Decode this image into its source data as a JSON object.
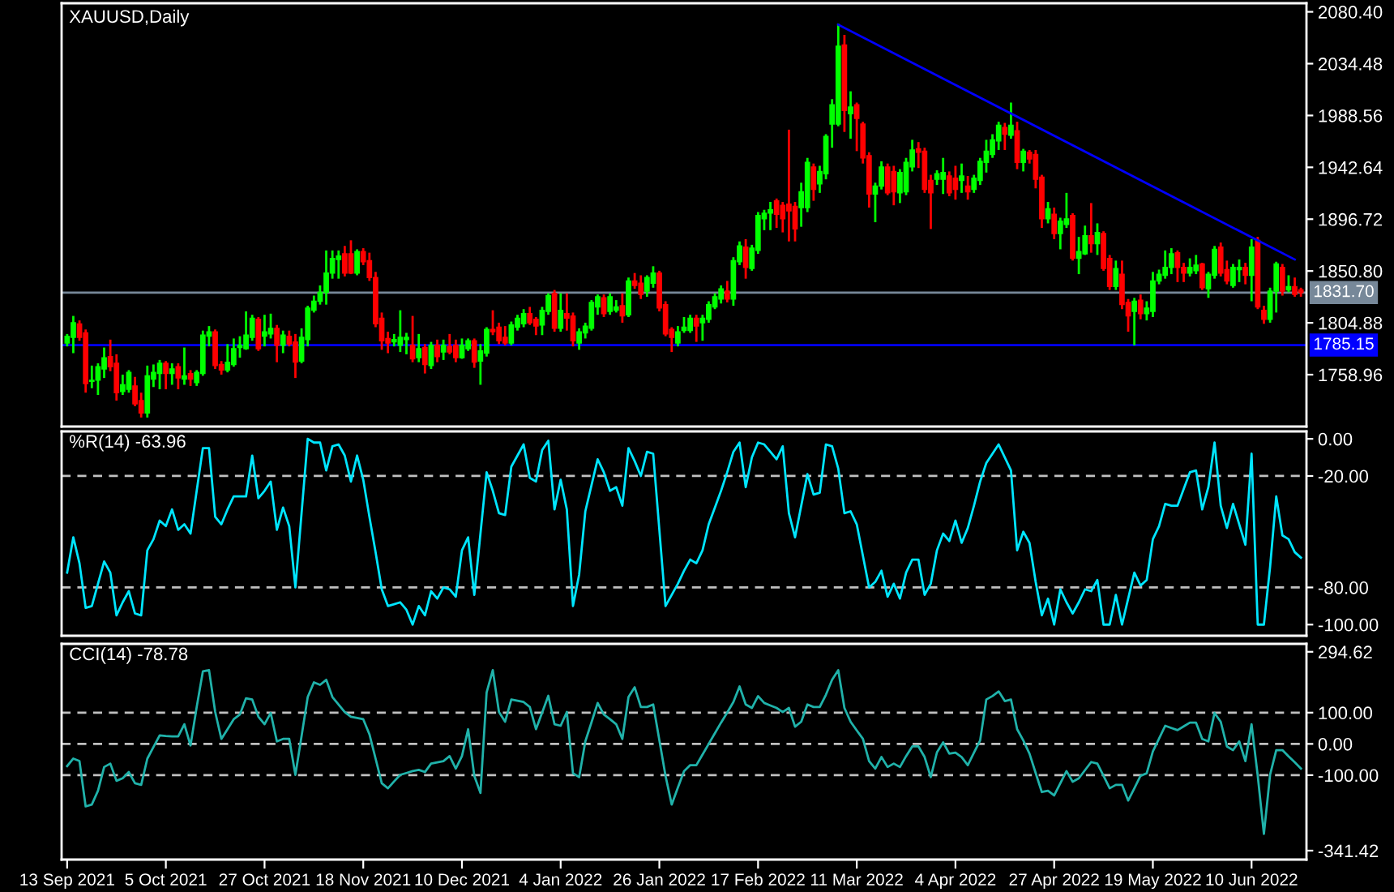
{
  "chart_data": [
    {
      "type": "candlestick",
      "title": "XAUUSD,Daily",
      "tick_labels": "y",
      "categories": [
        null,
        null,
        null,
        null,
        null,
        null,
        null,
        null,
        null,
        null,
        null,
        null,
        null,
        null,
        null,
        null,
        null,
        null,
        null,
        null,
        null,
        null,
        null,
        null,
        null,
        null,
        null,
        null,
        null,
        null,
        null,
        null,
        null,
        null,
        null,
        null,
        null,
        null,
        null,
        null,
        null,
        null,
        null,
        null,
        null,
        null,
        null,
        null,
        null,
        null,
        null,
        null,
        null,
        null,
        null,
        null,
        null,
        null,
        null,
        null,
        null,
        null,
        null,
        null,
        null,
        null,
        null,
        null,
        null,
        null,
        null,
        null,
        null,
        null,
        null,
        null,
        null,
        null,
        null,
        null,
        null,
        null,
        null,
        null,
        null,
        null,
        null,
        null,
        null,
        null,
        null,
        null,
        null,
        null,
        null,
        null,
        null,
        null,
        null,
        null,
        null,
        null,
        null,
        null,
        null,
        null,
        null,
        null,
        null,
        null,
        null,
        null,
        null,
        null,
        null,
        null,
        null,
        null,
        null,
        null,
        null,
        null,
        null,
        null,
        null,
        null,
        null,
        null,
        null,
        null,
        null,
        null,
        null,
        null,
        null,
        null,
        null,
        null,
        null,
        null,
        null,
        null,
        null,
        null,
        null,
        null,
        null,
        null,
        null,
        null,
        null,
        null,
        null,
        null,
        null,
        null,
        null,
        null,
        null,
        null,
        null,
        null,
        null,
        null,
        null,
        null,
        null,
        null,
        null,
        null,
        null,
        null,
        null,
        null,
        null,
        null,
        null,
        null,
        null,
        null,
        null,
        null,
        null,
        null,
        null,
        null,
        null,
        null,
        null,
        null,
        null,
        null,
        null,
        null,
        null,
        null,
        null,
        null,
        null,
        null,
        null
      ],
      "ohlc": [
        [
          1787,
          1794,
          1785,
          1793
        ],
        [
          1792,
          1810,
          1779,
          1805
        ],
        [
          1804,
          1806,
          1790,
          1792
        ],
        [
          1796,
          1798,
          1744,
          1751
        ],
        [
          1753,
          1766,
          1748,
          1754
        ],
        [
          1754,
          1768,
          1742,
          1766
        ],
        [
          1764,
          1782,
          1757,
          1774
        ],
        [
          1775,
          1789,
          1763,
          1766
        ],
        [
          1769,
          1776,
          1737,
          1743
        ],
        [
          1744,
          1758,
          1742,
          1750
        ],
        [
          1746,
          1762,
          1744,
          1761
        ],
        [
          1749,
          1756,
          1732,
          1733
        ],
        [
          1736,
          1742,
          1722,
          1725
        ],
        [
          1725,
          1766,
          1722,
          1758
        ],
        [
          1755,
          1767,
          1749,
          1761
        ],
        [
          1760,
          1771,
          1747,
          1769
        ],
        [
          1769,
          1770,
          1747,
          1760
        ],
        [
          1760,
          1768,
          1751,
          1764
        ],
        [
          1766,
          1768,
          1747,
          1756
        ],
        [
          1755,
          1782,
          1751,
          1758
        ],
        [
          1760,
          1762,
          1750,
          1755
        ],
        [
          1752,
          1762,
          1750,
          1761
        ],
        [
          1760,
          1797,
          1759,
          1794
        ],
        [
          1793,
          1801,
          1785,
          1797
        ],
        [
          1797,
          1798,
          1765,
          1767
        ],
        [
          1768,
          1770,
          1760,
          1763
        ],
        [
          1763,
          1785,
          1762,
          1770
        ],
        [
          1768,
          1790,
          1767,
          1782
        ],
        [
          1783,
          1792,
          1775,
          1785
        ],
        [
          1782,
          1814,
          1782,
          1794
        ],
        [
          1792,
          1811,
          1790,
          1809
        ],
        [
          1808,
          1809,
          1781,
          1782
        ],
        [
          1793,
          1811,
          1785,
          1797
        ],
        [
          1795,
          1812,
          1792,
          1800
        ],
        [
          1800,
          1802,
          1771,
          1785
        ],
        [
          1785,
          1797,
          1779,
          1794
        ],
        [
          1793,
          1797,
          1785,
          1786
        ],
        [
          1788,
          1794,
          1757,
          1770
        ],
        [
          1771,
          1799,
          1770,
          1792
        ],
        [
          1790,
          1819,
          1785,
          1818
        ],
        [
          1816,
          1828,
          1815,
          1824
        ],
        [
          1824,
          1837,
          1822,
          1832
        ],
        [
          1832,
          1868,
          1822,
          1849
        ],
        [
          1849,
          1868,
          1845,
          1862
        ],
        [
          1861,
          1868,
          1845,
          1864
        ],
        [
          1866,
          1872,
          1847,
          1849
        ],
        [
          1866,
          1877,
          1849,
          1849
        ],
        [
          1849,
          1869,
          1848,
          1868
        ],
        [
          1868,
          1870,
          1857,
          1859
        ],
        [
          1860,
          1866,
          1843,
          1845
        ],
        [
          1845,
          1849,
          1802,
          1804
        ],
        [
          1809,
          1813,
          1782,
          1789
        ],
        [
          1791,
          1796,
          1779,
          1787
        ],
        [
          1788,
          1794,
          1785,
          1790
        ],
        [
          1785,
          1815,
          1780,
          1792
        ],
        [
          1790,
          1795,
          1778,
          1792
        ],
        [
          1785,
          1810,
          1771,
          1773
        ],
        [
          1774,
          1794,
          1771,
          1782
        ],
        [
          1783,
          1785,
          1761,
          1768
        ],
        [
          1767,
          1787,
          1765,
          1785
        ],
        [
          1785,
          1789,
          1771,
          1775
        ],
        [
          1779,
          1789,
          1773,
          1785
        ],
        [
          1784,
          1794,
          1778,
          1779
        ],
        [
          1785,
          1789,
          1771,
          1774
        ],
        [
          1774,
          1790,
          1774,
          1785
        ],
        [
          1782,
          1790,
          1781,
          1789
        ],
        [
          1789,
          1790,
          1766,
          1770
        ],
        [
          1771,
          1785,
          1751,
          1780
        ],
        [
          1778,
          1800,
          1776,
          1799
        ],
        [
          1799,
          1815,
          1795,
          1797
        ],
        [
          1801,
          1804,
          1787,
          1789
        ],
        [
          1792,
          1801,
          1786,
          1787
        ],
        [
          1787,
          1805,
          1786,
          1803
        ],
        [
          1801,
          1811,
          1799,
          1809
        ],
        [
          1804,
          1816,
          1802,
          1813
        ],
        [
          1813,
          1818,
          1804,
          1805
        ],
        [
          1808,
          1809,
          1795,
          1802
        ],
        [
          1803,
          1818,
          1795,
          1816
        ],
        [
          1815,
          1830,
          1813,
          1829
        ],
        [
          1831,
          1833,
          1798,
          1800
        ],
        [
          1800,
          1830,
          1798,
          1816
        ],
        [
          1813,
          1830,
          1799,
          1809
        ],
        [
          1811,
          1813,
          1785,
          1789
        ],
        [
          1787,
          1799,
          1782,
          1797
        ],
        [
          1796,
          1804,
          1792,
          1802
        ],
        [
          1800,
          1824,
          1799,
          1823
        ],
        [
          1819,
          1829,
          1813,
          1828
        ],
        [
          1827,
          1829,
          1811,
          1813
        ],
        [
          1815,
          1830,
          1813,
          1828
        ],
        [
          1816,
          1824,
          1815,
          1819
        ],
        [
          1820,
          1830,
          1806,
          1811
        ],
        [
          1812,
          1844,
          1811,
          1842
        ],
        [
          1842,
          1848,
          1836,
          1838
        ],
        [
          1840,
          1846,
          1827,
          1830
        ],
        [
          1833,
          1846,
          1829,
          1845
        ],
        [
          1840,
          1854,
          1837,
          1849
        ],
        [
          1849,
          1850,
          1816,
          1818
        ],
        [
          1821,
          1823,
          1794,
          1795
        ],
        [
          1799,
          1800,
          1780,
          1792
        ],
        [
          1787,
          1801,
          1785,
          1797
        ],
        [
          1798,
          1809,
          1797,
          1801
        ],
        [
          1798,
          1811,
          1797,
          1809
        ],
        [
          1809,
          1811,
          1789,
          1802
        ],
        [
          1805,
          1811,
          1790,
          1809
        ],
        [
          1808,
          1823,
          1806,
          1821
        ],
        [
          1819,
          1830,
          1818,
          1828
        ],
        [
          1826,
          1837,
          1823,
          1835
        ],
        [
          1833,
          1841,
          1824,
          1826
        ],
        [
          1826,
          1862,
          1821,
          1860
        ],
        [
          1859,
          1876,
          1857,
          1873
        ],
        [
          1872,
          1878,
          1845,
          1854
        ],
        [
          1853,
          1873,
          1852,
          1871
        ],
        [
          1869,
          1902,
          1867,
          1900
        ],
        [
          1897,
          1904,
          1888,
          1902
        ],
        [
          1902,
          1911,
          1888,
          1905
        ],
        [
          1913,
          1914,
          1890,
          1901
        ],
        [
          1909,
          1911,
          1886,
          1897
        ],
        [
          1910,
          1975,
          1878,
          1904
        ],
        [
          1908,
          1911,
          1878,
          1888
        ],
        [
          1907,
          1928,
          1891,
          1921
        ],
        [
          1907,
          1950,
          1904,
          1947
        ],
        [
          1943,
          1945,
          1914,
          1923
        ],
        [
          1928,
          1943,
          1921,
          1939
        ],
        [
          1937,
          1971,
          1933,
          1970
        ],
        [
          1981,
          2002,
          1961,
          1998
        ],
        [
          1981,
          2069,
          1980,
          2050
        ],
        [
          2051,
          2059,
          1975,
          1993
        ],
        [
          1990,
          2009,
          1969,
          1996
        ],
        [
          1998,
          1999,
          1958,
          1986
        ],
        [
          1981,
          1982,
          1947,
          1951
        ],
        [
          1953,
          1955,
          1908,
          1919
        ],
        [
          1919,
          1928,
          1895,
          1926
        ],
        [
          1926,
          1947,
          1924,
          1943
        ],
        [
          1943,
          1945,
          1919,
          1920
        ],
        [
          1939,
          1943,
          1910,
          1921
        ],
        [
          1920,
          1940,
          1912,
          1938
        ],
        [
          1921,
          1950,
          1919,
          1947
        ],
        [
          1943,
          1966,
          1940,
          1958
        ],
        [
          1959,
          1964,
          1943,
          1956
        ],
        [
          1957,
          1959,
          1921,
          1923
        ],
        [
          1931,
          1935,
          1889,
          1920
        ],
        [
          1932,
          1939,
          1928,
          1937
        ],
        [
          1932,
          1950,
          1920,
          1938
        ],
        [
          1935,
          1938,
          1918,
          1920
        ],
        [
          1933,
          1943,
          1915,
          1923
        ],
        [
          1931,
          1945,
          1921,
          1935
        ],
        [
          1926,
          1934,
          1915,
          1921
        ],
        [
          1923,
          1935,
          1921,
          1933
        ],
        [
          1931,
          1950,
          1928,
          1948
        ],
        [
          1947,
          1966,
          1939,
          1957
        ],
        [
          1954,
          1971,
          1952,
          1967
        ],
        [
          1966,
          1982,
          1959,
          1980
        ],
        [
          1978,
          1981,
          1959,
          1972
        ],
        [
          1971,
          1999,
          1969,
          1980
        ],
        [
          1975,
          1982,
          1942,
          1947
        ],
        [
          1947,
          1958,
          1940,
          1957
        ],
        [
          1956,
          1957,
          1947,
          1950
        ],
        [
          1954,
          1957,
          1925,
          1932
        ],
        [
          1934,
          1935,
          1890,
          1897
        ],
        [
          1897,
          1911,
          1894,
          1906
        ],
        [
          1901,
          1906,
          1880,
          1884
        ],
        [
          1884,
          1897,
          1871,
          1895
        ],
        [
          1892,
          1919,
          1890,
          1897
        ],
        [
          1900,
          1901,
          1861,
          1862
        ],
        [
          1862,
          1880,
          1849,
          1868
        ],
        [
          1866,
          1890,
          1866,
          1882
        ],
        [
          1882,
          1910,
          1868,
          1875
        ],
        [
          1875,
          1892,
          1866,
          1885
        ],
        [
          1884,
          1885,
          1852,
          1853
        ],
        [
          1862,
          1864,
          1835,
          1837
        ],
        [
          1837,
          1859,
          1835,
          1853
        ],
        [
          1848,
          1859,
          1818,
          1821
        ],
        [
          1823,
          1825,
          1798,
          1811
        ],
        [
          1815,
          1826,
          1786,
          1824
        ],
        [
          1825,
          1829,
          1809,
          1813
        ],
        [
          1813,
          1823,
          1808,
          1818
        ],
        [
          1815,
          1849,
          1811,
          1842
        ],
        [
          1842,
          1851,
          1840,
          1848
        ],
        [
          1847,
          1868,
          1845,
          1854
        ],
        [
          1854,
          1870,
          1849,
          1866
        ],
        [
          1867,
          1868,
          1842,
          1854
        ],
        [
          1854,
          1857,
          1842,
          1849
        ],
        [
          1849,
          1861,
          1847,
          1854
        ],
        [
          1851,
          1864,
          1849,
          1856
        ],
        [
          1857,
          1857,
          1835,
          1836
        ],
        [
          1835,
          1849,
          1828,
          1848
        ],
        [
          1847,
          1872,
          1845,
          1870
        ],
        [
          1872,
          1875,
          1847,
          1849
        ],
        [
          1852,
          1859,
          1840,
          1842
        ],
        [
          1838,
          1856,
          1837,
          1854
        ],
        [
          1852,
          1860,
          1842,
          1854
        ],
        [
          1854,
          1857,
          1840,
          1847
        ],
        [
          1847,
          1878,
          1825,
          1872
        ],
        [
          1878,
          1880,
          1818,
          1819
        ],
        [
          1816,
          1819,
          1805,
          1808
        ],
        [
          1808,
          1835,
          1806,
          1833
        ],
        [
          1833,
          1858,
          1815,
          1857
        ],
        [
          1854,
          1856,
          1830,
          1833
        ],
        [
          1834,
          1846,
          1833,
          1837
        ],
        [
          1837,
          1844,
          1829,
          1830
        ],
        [
          1834,
          1835,
          1829,
          1831.7
        ]
      ],
      "series": [
        {
          "type": "line",
          "color": "#0000ff",
          "values": [
            null,
            null,
            null,
            null,
            null,
            null,
            null,
            null,
            null,
            null,
            null,
            null,
            null,
            null,
            null,
            null,
            null,
            null,
            null,
            null,
            null,
            null,
            null,
            null,
            null,
            null,
            null,
            null,
            null,
            null,
            null,
            null,
            null,
            null,
            null,
            null,
            null,
            null,
            null,
            null,
            null,
            null,
            null,
            null,
            null,
            null,
            null,
            null,
            null,
            null,
            null,
            null,
            null,
            null,
            null,
            null,
            null,
            null,
            null,
            null,
            null,
            null,
            null,
            null,
            null,
            null,
            null,
            null,
            null,
            null,
            null,
            null,
            null,
            null,
            null,
            null,
            null,
            null,
            null,
            null,
            null,
            null,
            null,
            null,
            null,
            null,
            null,
            null,
            null,
            null,
            null,
            null,
            null,
            null,
            null,
            null,
            null,
            null,
            null,
            null,
            null,
            null,
            null,
            null,
            null,
            null,
            null,
            null,
            null,
            null,
            null,
            null,
            null,
            null,
            null,
            null,
            null,
            null,
            null,
            null,
            null,
            null,
            null,
            null,
            null,
            2069,
            null,
            null,
            null,
            null,
            null,
            null,
            null,
            null,
            null,
            null,
            null,
            null,
            null,
            null,
            null,
            null,
            null,
            null,
            null,
            null,
            null,
            null,
            null,
            null,
            null,
            null,
            null,
            null,
            null,
            null,
            null,
            null,
            null,
            null,
            null,
            null,
            null,
            null,
            null,
            null,
            null,
            null,
            null,
            null,
            null,
            null,
            null,
            null,
            null,
            null,
            null,
            null,
            null,
            null,
            null,
            null,
            null,
            null,
            null,
            null,
            null,
            null,
            null,
            null,
            null,
            null,
            null,
            null,
            null,
            null,
            null,
            null,
            null,
            1861,
            null
          ]
        }
      ],
      "ylim": [
        1713,
        2088
      ],
      "yticks": [
        {
          "value": 2080.4,
          "label": "2080.40"
        },
        {
          "value": 2034.48,
          "label": "2034.48"
        },
        {
          "value": 1988.56,
          "label": "1988.56"
        },
        {
          "value": 1942.64,
          "label": "1942.64"
        },
        {
          "value": 1896.72,
          "label": "1896.72"
        },
        {
          "value": 1850.8,
          "label": "1850.80"
        },
        {
          "value": 1804.88,
          "label": "1804.88"
        },
        {
          "value": 1758.96,
          "label": "1758.96"
        }
      ],
      "ref_lines": [
        {
          "axis": "y",
          "value": 1831.7,
          "label": "1831.70",
          "color": "#778899"
        },
        {
          "axis": "y",
          "value": 1785.15,
          "label": "1785.15",
          "color": "#0000ff"
        }
      ]
    },
    {
      "type": "line",
      "title": "%R(14) -63.96",
      "tick_labels": "y",
      "categories": [
        null,
        null,
        null,
        null,
        null,
        null,
        null,
        null,
        null,
        null,
        null,
        null,
        null,
        null,
        null,
        null,
        null,
        null,
        null,
        null,
        null,
        null,
        null,
        null,
        null,
        null,
        null,
        null,
        null,
        null,
        null,
        null,
        null,
        null,
        null,
        null,
        null,
        null,
        null,
        null,
        null,
        null,
        null,
        null,
        null,
        null,
        null,
        null,
        null,
        null,
        null,
        null,
        null,
        null,
        null,
        null,
        null,
        null,
        null,
        null,
        null,
        null,
        null,
        null,
        null,
        null,
        null,
        null,
        null,
        null,
        null,
        null,
        null,
        null,
        null,
        null,
        null,
        null,
        null,
        null,
        null,
        null,
        null,
        null,
        null,
        null,
        null,
        null,
        null,
        null,
        null,
        null,
        null,
        null,
        null,
        null,
        null,
        null,
        null,
        null,
        null,
        null,
        null,
        null,
        null,
        null,
        null,
        null,
        null,
        null,
        null,
        null,
        null,
        null,
        null,
        null,
        null,
        null,
        null,
        null,
        null,
        null,
        null,
        null,
        null,
        null,
        null,
        null,
        null,
        null,
        null,
        null,
        null,
        null,
        null,
        null,
        null,
        null,
        null,
        null,
        null,
        null,
        null,
        null,
        null,
        null,
        null,
        null,
        null,
        null,
        null,
        null,
        null,
        null,
        null,
        null,
        null,
        null,
        null,
        null,
        null,
        null,
        null,
        null,
        null,
        null,
        null,
        null,
        null,
        null,
        null,
        null,
        null,
        null,
        null,
        null,
        null,
        null,
        null,
        null,
        null,
        null,
        null,
        null,
        null,
        null,
        null,
        null,
        null,
        null,
        null,
        null,
        null,
        null,
        null,
        null,
        null,
        null,
        null,
        null,
        null
      ],
      "series": [
        {
          "color": "#00e5ff",
          "values": [
            -72,
            -53,
            -67,
            -91,
            -90,
            -78,
            -66,
            -72,
            -95,
            -88,
            -82,
            -94,
            -95,
            -60,
            -54,
            -44,
            -47,
            -38,
            -49,
            -46,
            -51,
            -28,
            -5,
            -5,
            -42,
            -46,
            -38,
            -31,
            -31,
            -31,
            -9,
            -32,
            -28,
            -23,
            -49,
            -37,
            -47,
            -80,
            -40,
            0,
            -2,
            -2,
            -17,
            -4,
            -3,
            -9,
            -23,
            -9,
            -22,
            -42,
            -61,
            -81,
            -90,
            -89,
            -88,
            -92,
            -100,
            -90,
            -95,
            -82,
            -86,
            -80,
            -81,
            -85,
            -60,
            -53,
            -84,
            -51,
            -18,
            -28,
            -40,
            -41,
            -15,
            -9,
            -3,
            -21,
            -23,
            -6,
            -1,
            -38,
            -22,
            -38,
            -90,
            -73,
            -39,
            -25,
            -11,
            -18,
            -28,
            -26,
            -36,
            -5,
            -12,
            -20,
            -7,
            -8,
            -49,
            -90,
            -84,
            -78,
            -71,
            -65,
            -67,
            -60,
            -46,
            -37,
            -28,
            -18,
            -7,
            -2,
            -26,
            -10,
            -2,
            -3,
            -7,
            -11,
            -4,
            -40,
            -53,
            -36,
            -19,
            -30,
            -29,
            -3,
            -4,
            -16,
            -40,
            -39,
            -46,
            -63,
            -80,
            -77,
            -71,
            -85,
            -78,
            -86,
            -72,
            -65,
            -65,
            -84,
            -78,
            -60,
            -51,
            -55,
            -44,
            -56,
            -48,
            -36,
            -23,
            -13,
            -8,
            -3,
            -10,
            -17,
            -60,
            -50,
            -56,
            -77,
            -95,
            -86,
            -100,
            -81,
            -88,
            -94,
            -88,
            -81,
            -82,
            -76,
            -100,
            -100,
            -84,
            -100,
            -86,
            -72,
            -79,
            -76,
            -54,
            -47,
            -35,
            -36,
            -36,
            -27,
            -18,
            -17,
            -38,
            -26,
            -2,
            -36,
            -48,
            -35,
            -46,
            -57,
            -8,
            -100,
            -100,
            -69,
            -31,
            -52,
            -54,
            -61,
            -63.96
          ]
        }
      ],
      "ylim": [
        -106,
        4
      ],
      "yticks": [
        {
          "value": 0,
          "label": "0.00"
        },
        {
          "value": -20,
          "label": "-20.00"
        },
        {
          "value": -80,
          "label": "-80.00"
        },
        {
          "value": -100,
          "label": "-100.00"
        }
      ],
      "ref_lines": [
        {
          "axis": "y",
          "value": -20,
          "color": "#c0c0c0",
          "line_style": "dashed"
        },
        {
          "axis": "y",
          "value": -80,
          "color": "#c0c0c0",
          "line_style": "dashed"
        }
      ]
    },
    {
      "type": "line",
      "title": "CCI(14) -78.78",
      "categories": [
        "13 Sep 2021",
        null,
        null,
        null,
        null,
        null,
        null,
        null,
        null,
        null,
        null,
        null,
        null,
        null,
        null,
        null,
        "5 Oct 2021",
        null,
        null,
        null,
        null,
        null,
        null,
        null,
        null,
        null,
        null,
        null,
        null,
        null,
        null,
        null,
        "27 Oct 2021",
        null,
        null,
        null,
        null,
        null,
        null,
        null,
        null,
        null,
        null,
        null,
        null,
        null,
        null,
        null,
        "18 Nov 2021",
        null,
        null,
        null,
        null,
        null,
        null,
        null,
        null,
        null,
        null,
        null,
        null,
        null,
        null,
        null,
        "10 Dec 2021",
        null,
        null,
        null,
        null,
        null,
        null,
        null,
        null,
        null,
        null,
        null,
        null,
        null,
        null,
        null,
        "4 Jan 2022",
        null,
        null,
        null,
        null,
        null,
        null,
        null,
        null,
        null,
        null,
        null,
        null,
        null,
        null,
        null,
        "26 Jan 2022",
        null,
        null,
        null,
        null,
        null,
        null,
        null,
        null,
        null,
        null,
        null,
        null,
        null,
        null,
        null,
        "17 Feb 2022",
        null,
        null,
        null,
        null,
        null,
        null,
        null,
        null,
        null,
        null,
        null,
        null,
        null,
        null,
        null,
        "11 Mar 2022",
        null,
        null,
        null,
        null,
        null,
        null,
        null,
        null,
        null,
        null,
        null,
        null,
        null,
        null,
        null,
        "4 Apr 2022",
        null,
        null,
        null,
        null,
        null,
        null,
        null,
        null,
        null,
        null,
        null,
        null,
        null,
        null,
        null,
        "27 Apr 2022",
        null,
        null,
        null,
        null,
        null,
        null,
        null,
        null,
        null,
        null,
        null,
        null,
        null,
        null,
        null,
        "19 May 2022",
        null,
        null,
        null,
        null,
        null,
        null,
        null,
        null,
        null,
        null,
        null,
        null,
        null,
        null,
        null,
        "10 Jun 2022",
        null,
        null,
        null,
        null,
        null,
        null,
        null,
        null
      ],
      "series": [
        {
          "color": "#20b2aa",
          "values": [
            -71,
            -47,
            -55,
            -200,
            -194,
            -150,
            -74,
            -63,
            -118,
            -110,
            -90,
            -126,
            -131,
            -47,
            -10,
            27,
            25,
            24,
            24,
            63,
            -5,
            118,
            232,
            236,
            102,
            16,
            47,
            79,
            94,
            146,
            142,
            87,
            63,
            99,
            8,
            16,
            16,
            -99,
            25,
            150,
            197,
            189,
            205,
            150,
            126,
            102,
            87,
            83,
            79,
            31,
            -47,
            -126,
            -142,
            -120,
            -99,
            -93,
            -87,
            -83,
            -90,
            -63,
            -59,
            -55,
            -39,
            -79,
            -39,
            47,
            -102,
            -157,
            165,
            236,
            102,
            71,
            142,
            138,
            134,
            118,
            47,
            100,
            154,
            63,
            58,
            102,
            -94,
            -106,
            8,
            69,
            131,
            94,
            79,
            63,
            16,
            150,
            181,
            118,
            118,
            126,
            12,
            -102,
            -194,
            -140,
            -87,
            -68,
            -68,
            -34,
            0,
            34,
            68,
            100,
            134,
            184,
            126,
            115,
            153,
            131,
            123,
            115,
            102,
            115,
            55,
            71,
            126,
            118,
            118,
            157,
            205,
            236,
            115,
            71,
            43,
            16,
            -55,
            -79,
            -42,
            -74,
            -63,
            -74,
            -39,
            -8,
            -8,
            -42,
            -106,
            -27,
            5,
            -31,
            -28,
            -42,
            -68,
            -28,
            11,
            142,
            153,
            168,
            137,
            142,
            47,
            11,
            -31,
            -93,
            -154,
            -150,
            -165,
            -126,
            -87,
            -121,
            -110,
            -84,
            -58,
            -63,
            -102,
            -142,
            -131,
            -131,
            -181,
            -142,
            -102,
            -94,
            -24,
            17,
            58,
            51,
            44,
            56,
            68,
            68,
            16,
            8,
            99,
            71,
            -8,
            -20,
            8,
            -55,
            63,
            -102,
            -288,
            -99,
            -20,
            -20,
            -40,
            -59,
            -78.78
          ]
        }
      ],
      "ylim": [
        -370,
        320
      ],
      "yticks": [
        {
          "value": 294.62,
          "label": "294.62"
        },
        {
          "value": 100,
          "label": "100.00"
        },
        {
          "value": 0,
          "label": "0.00"
        },
        {
          "value": -100,
          "label": "-100.00"
        },
        {
          "value": -341.42,
          "label": "-341.42"
        }
      ],
      "ref_lines": [
        {
          "axis": "y",
          "value": 100,
          "color": "#c0c0c0",
          "line_style": "dashed"
        },
        {
          "axis": "y",
          "value": 0,
          "color": "#c0c0c0",
          "line_style": "dashed"
        },
        {
          "axis": "y",
          "value": -100,
          "color": "#c0c0c0",
          "line_style": "dashed"
        }
      ]
    }
  ]
}
